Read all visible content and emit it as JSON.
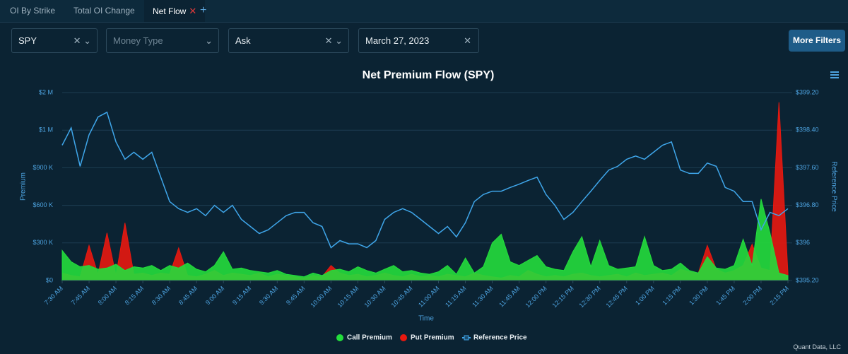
{
  "tabs": [
    "OI By Strike",
    "Total OI Change",
    "Net Flow"
  ],
  "filters": {
    "symbol": "SPY",
    "money_type": "Money Type",
    "side": "Ask",
    "date": "March 27, 2023"
  },
  "button": "More Filters",
  "credit": "Quant Data, LLC",
  "chart_data": {
    "type": "area",
    "title": "Net Premium Flow (SPY)",
    "x_label": "Time",
    "y_label": "Premium",
    "y2_label": "Reference Price",
    "grid": true,
    "legend": "bottom",
    "categories": [
      "7:30 AM",
      null,
      null,
      "7:45 AM",
      null,
      null,
      "8:00 AM",
      null,
      null,
      "8:15 AM",
      null,
      null,
      "8:30 AM",
      null,
      null,
      "8:45 AM",
      null,
      null,
      "9:00 AM",
      null,
      null,
      "9:15 AM",
      null,
      null,
      "9:30 AM",
      null,
      null,
      "9:45 AM",
      null,
      null,
      "10:00 AM",
      null,
      null,
      "10:15 AM",
      null,
      null,
      "10:30 AM",
      null,
      null,
      "10:45 AM",
      null,
      null,
      "11:00 AM",
      null,
      null,
      "11:15 AM",
      null,
      null,
      "11:30 AM",
      null,
      null,
      "11:45 AM",
      null,
      null,
      "12:00 PM",
      null,
      null,
      "12:15 PM",
      null,
      null,
      "12:30 PM",
      null,
      null,
      "12:45 PM",
      null,
      null,
      "1:00 PM",
      null,
      null,
      "1:15 PM",
      null,
      null,
      "1:30 PM",
      null,
      null,
      "1:45 PM",
      null,
      null,
      "2:00 PM",
      null,
      null,
      "2:15 PM"
    ],
    "ylim": [
      0,
      2000000
    ],
    "yticks": [
      {
        "value": 0,
        "label": "$0"
      },
      {
        "value": 300000,
        "label": "$300 K"
      },
      {
        "value": 600000,
        "label": "$600 K"
      },
      {
        "value": 900000,
        "label": "$900 K"
      },
      {
        "value": 1000000,
        "label": "$1 M"
      },
      {
        "value": 2000000,
        "label": "$2 M"
      }
    ],
    "y2lim": [
      395.2,
      399.2
    ],
    "y2ticks": [
      {
        "value": 395.2,
        "label": "$395.20"
      },
      {
        "value": 396,
        "label": "$396"
      },
      {
        "value": 396.8,
        "label": "$396.80"
      },
      {
        "value": 397.6,
        "label": "$397.60"
      },
      {
        "value": 398.4,
        "label": "$398.40"
      },
      {
        "value": 399.2,
        "label": "$399.20"
      }
    ],
    "series": [
      {
        "name": "Put Premium",
        "type": "area",
        "color": "#e8180f",
        "values": [
          60000,
          40000,
          30000,
          280000,
          50000,
          380000,
          40000,
          460000,
          50000,
          60000,
          40000,
          60000,
          50000,
          260000,
          40000,
          30000,
          50000,
          80000,
          40000,
          60000,
          50000,
          40000,
          60000,
          30000,
          50000,
          40000,
          30000,
          20000,
          40000,
          30000,
          120000,
          60000,
          40000,
          50000,
          30000,
          40000,
          60000,
          40000,
          30000,
          50000,
          30000,
          40000,
          30000,
          50000,
          40000,
          30000,
          60000,
          40000,
          30000,
          20000,
          40000,
          30000,
          80000,
          50000,
          30000,
          40000,
          30000,
          50000,
          60000,
          40000,
          30000,
          40000,
          50000,
          30000,
          60000,
          40000,
          50000,
          60000,
          40000,
          90000,
          70000,
          60000,
          280000,
          90000,
          60000,
          80000,
          120000,
          290000,
          100000,
          80000,
          1740000,
          60000
        ]
      },
      {
        "name": "Call Premium",
        "type": "area",
        "color": "#23dd3c",
        "values": [
          240000,
          150000,
          110000,
          120000,
          90000,
          100000,
          130000,
          80000,
          110000,
          100000,
          120000,
          80000,
          120000,
          100000,
          140000,
          90000,
          70000,
          120000,
          230000,
          90000,
          100000,
          80000,
          70000,
          60000,
          80000,
          50000,
          40000,
          30000,
          60000,
          40000,
          80000,
          90000,
          70000,
          110000,
          80000,
          60000,
          90000,
          120000,
          70000,
          80000,
          60000,
          50000,
          70000,
          120000,
          50000,
          180000,
          60000,
          110000,
          300000,
          370000,
          150000,
          120000,
          160000,
          200000,
          110000,
          90000,
          80000,
          230000,
          350000,
          110000,
          320000,
          120000,
          90000,
          100000,
          110000,
          350000,
          120000,
          80000,
          90000,
          140000,
          80000,
          60000,
          190000,
          100000,
          90000,
          120000,
          330000,
          120000,
          650000,
          380000,
          60000,
          40000
        ]
      },
      {
        "name": "Reference Price",
        "type": "line",
        "axis": "y2",
        "color": "#3fa6ea",
        "values": [
          398.08,
          398.45,
          397.63,
          398.3,
          398.68,
          398.78,
          398.15,
          397.78,
          397.93,
          397.78,
          397.93,
          397.4,
          396.88,
          396.73,
          396.65,
          396.73,
          396.58,
          396.8,
          396.65,
          396.8,
          396.5,
          396.35,
          396.2,
          396.28,
          396.43,
          396.58,
          396.65,
          396.65,
          396.43,
          396.35,
          395.9,
          396.05,
          395.98,
          395.98,
          395.9,
          396.05,
          396.5,
          396.65,
          396.73,
          396.65,
          396.5,
          396.35,
          396.2,
          396.35,
          396.13,
          396.43,
          396.88,
          397.03,
          397.1,
          397.1,
          397.18,
          397.25,
          397.33,
          397.4,
          397.03,
          396.8,
          396.5,
          396.65,
          396.88,
          397.1,
          397.33,
          397.55,
          397.63,
          397.78,
          397.85,
          397.78,
          397.93,
          398.08,
          398.15,
          397.55,
          397.48,
          397.48,
          397.7,
          397.63,
          397.18,
          397.1,
          396.88,
          396.88,
          396.28,
          396.65,
          396.58,
          396.73
        ]
      }
    ]
  }
}
